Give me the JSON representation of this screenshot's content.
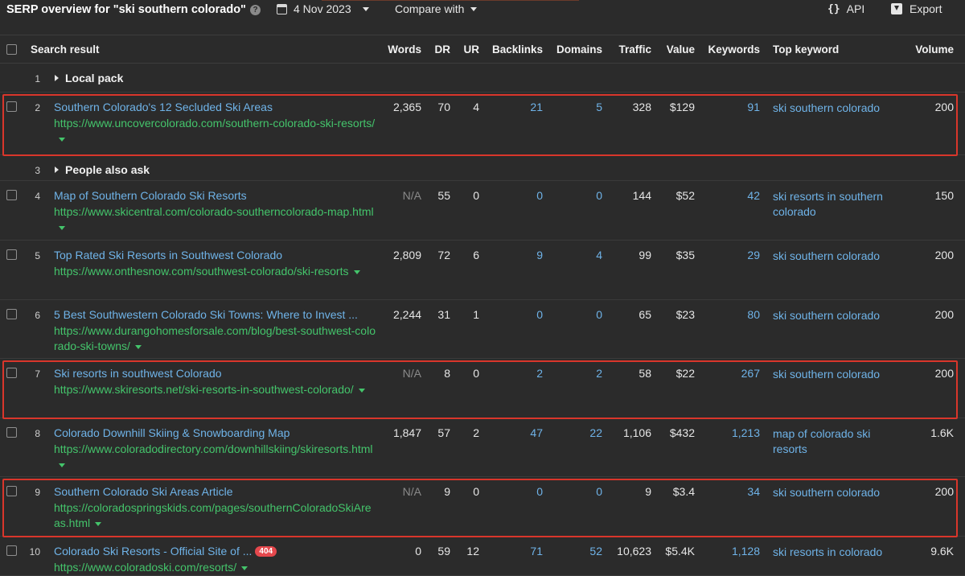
{
  "header": {
    "title": "SERP overview for \"ski southern colorado\"",
    "date": "4 Nov 2023",
    "compare_label": "Compare with",
    "api_label": "API",
    "export_label": "Export"
  },
  "columns": {
    "search_result": "Search result",
    "words": "Words",
    "dr": "DR",
    "ur": "UR",
    "backlinks": "Backlinks",
    "domains": "Domains",
    "traffic": "Traffic",
    "value": "Value",
    "keywords": "Keywords",
    "top_keyword": "Top keyword",
    "volume": "Volume"
  },
  "sections": {
    "local_pack": {
      "num": "1",
      "label": "Local pack"
    },
    "people_also_ask": {
      "num": "3",
      "label": "People also ask"
    }
  },
  "rows": [
    {
      "num": "2",
      "title": "Southern Colorado's 12 Secluded Ski Areas",
      "url": "https://www.uncovercolorado.com/southern-colorado-ski-resorts/",
      "words": "2,365",
      "dr": "70",
      "ur": "4",
      "backlinks": "21",
      "domains": "5",
      "traffic": "328",
      "value": "$129",
      "keywords": "91",
      "top_keyword": "ski southern colorado",
      "volume": "200",
      "highlighted": true
    },
    {
      "num": "4",
      "title": "Map of Southern Colorado Ski Resorts",
      "url": "https://www.skicentral.com/colorado-southerncolorado-map.html",
      "words": "N/A",
      "dr": "55",
      "ur": "0",
      "backlinks": "0",
      "domains": "0",
      "traffic": "144",
      "value": "$52",
      "keywords": "42",
      "top_keyword": "ski resorts in southern colorado",
      "volume": "150",
      "highlighted": false
    },
    {
      "num": "5",
      "title": "Top Rated Ski Resorts in Southwest Colorado",
      "url": "https://www.onthesnow.com/southwest-colorado/ski-resorts",
      "words": "2,809",
      "dr": "72",
      "ur": "6",
      "backlinks": "9",
      "domains": "4",
      "traffic": "99",
      "value": "$35",
      "keywords": "29",
      "top_keyword": "ski southern colorado",
      "volume": "200",
      "highlighted": false
    },
    {
      "num": "6",
      "title": "5 Best Southwestern Colorado Ski Towns: Where to Invest ...",
      "url": "https://www.durangohomesforsale.com/blog/best-southwest-colorado-ski-towns/",
      "words": "2,244",
      "dr": "31",
      "ur": "1",
      "backlinks": "0",
      "domains": "0",
      "traffic": "65",
      "value": "$23",
      "keywords": "80",
      "top_keyword": "ski southern colorado",
      "volume": "200",
      "highlighted": false
    },
    {
      "num": "7",
      "title": "Ski resorts in southwest Colorado",
      "url": "https://www.skiresorts.net/ski-resorts-in-southwest-colorado/",
      "words": "N/A",
      "dr": "8",
      "ur": "0",
      "backlinks": "2",
      "domains": "2",
      "traffic": "58",
      "value": "$22",
      "keywords": "267",
      "top_keyword": "ski southern colorado",
      "volume": "200",
      "highlighted": true
    },
    {
      "num": "8",
      "title": "Colorado Downhill Skiing & Snowboarding Map",
      "url": "https://www.coloradodirectory.com/downhillskiing/skiresorts.html",
      "words": "1,847",
      "dr": "57",
      "ur": "2",
      "backlinks": "47",
      "domains": "22",
      "traffic": "1,106",
      "value": "$432",
      "keywords": "1,213",
      "top_keyword": "map of colorado ski resorts",
      "volume": "1.6K",
      "highlighted": false
    },
    {
      "num": "9",
      "title": "Southern Colorado Ski Areas Article",
      "url": "https://coloradospringskids.com/pages/southernColoradoSkiAreas.html",
      "words": "N/A",
      "dr": "9",
      "ur": "0",
      "backlinks": "0",
      "domains": "0",
      "traffic": "9",
      "value": "$3.4",
      "keywords": "34",
      "top_keyword": "ski southern colorado",
      "volume": "200",
      "highlighted": true
    },
    {
      "num": "10",
      "title": "Colorado Ski Resorts - Official Site of ...",
      "badge": "404",
      "url": "https://www.coloradoski.com/resorts/",
      "words": "0",
      "dr": "59",
      "ur": "12",
      "backlinks": "71",
      "domains": "52",
      "traffic": "10,623",
      "value": "$5.4K",
      "keywords": "1,128",
      "top_keyword": "ski resorts in colorado",
      "volume": "9.6K",
      "highlighted": false
    }
  ]
}
